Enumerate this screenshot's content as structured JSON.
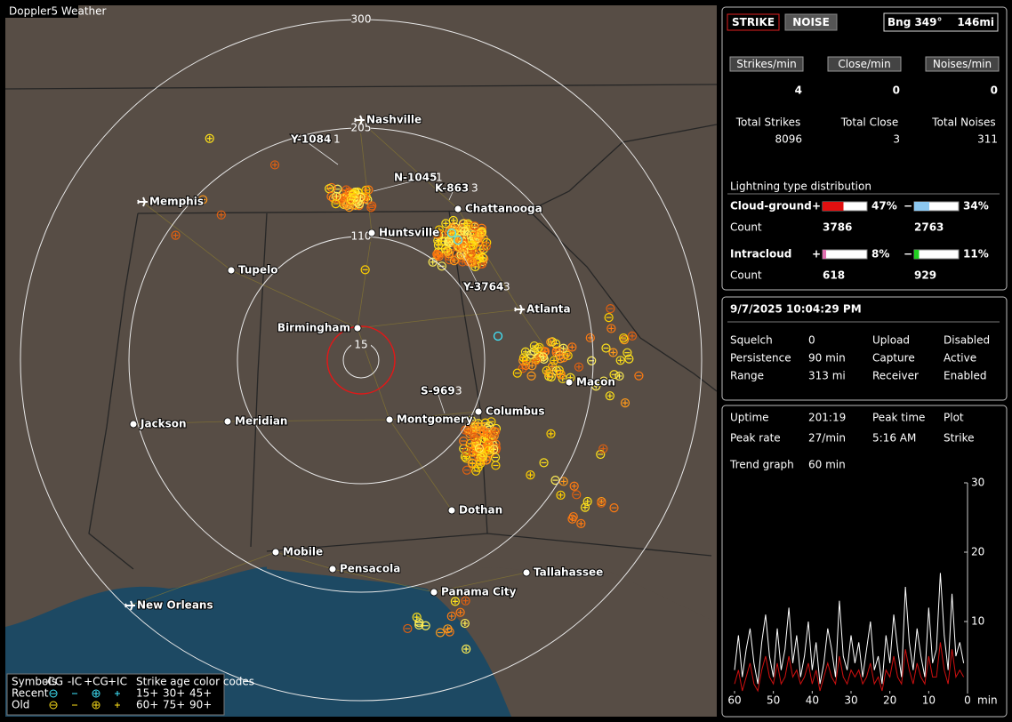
{
  "map": {
    "title": "Doppler5 Weather",
    "rings": [
      "300",
      "205",
      "110",
      "15"
    ],
    "cities": [
      "Nashville",
      "Memphis",
      "Chattanooga",
      "Huntsville",
      "Tupelo",
      "Atlanta",
      "Birmingham",
      "Macon",
      "Jackson",
      "Meridian",
      "Montgomery",
      "Columbus",
      "Dothan",
      "Mobile",
      "Pensacola",
      "Tallahassee",
      "Panama City",
      "New Orleans"
    ],
    "strike_tags": [
      {
        "id": "Y-1084",
        "count": "1"
      },
      {
        "id": "N-1045",
        "count": "1"
      },
      {
        "id": "K-863",
        "count": "3"
      },
      {
        "id": "Y-3764",
        "count": "3"
      },
      {
        "id": "S-969",
        "count": "3"
      }
    ],
    "legend": {
      "symbols": "Symbols",
      "types": [
        "-CG",
        "-IC",
        "+CG",
        "+IC"
      ],
      "age_title": "Strike age color codes",
      "rows": [
        {
          "label": "Recent",
          "ages": [
            "15+",
            "30+",
            "45+"
          ]
        },
        {
          "label": "Old",
          "ages": [
            "60+",
            "75+",
            "90+"
          ]
        }
      ]
    }
  },
  "counters": {
    "buttons": [
      "STRIKE",
      "NOISE"
    ],
    "bearing": "Bng 349°",
    "distance": "146mi",
    "rates": [
      {
        "label": "Strikes/min",
        "value": 4
      },
      {
        "label": "Close/min",
        "value": 0
      },
      {
        "label": "Noises/min",
        "value": 0
      }
    ],
    "totals": [
      {
        "label": "Total Strikes",
        "value": 8096
      },
      {
        "label": "Total Close",
        "value": 3
      },
      {
        "label": "Total Noises",
        "value": 311
      }
    ]
  },
  "distribution": {
    "title": "Lightning type distribution",
    "count_label": "Count",
    "rows": [
      {
        "name": "Cloud-ground",
        "positive": {
          "sign": "+",
          "percent": {
            "value": 47,
            "label": "47%"
          },
          "count": 3786,
          "color": "#e01010"
        },
        "negative": {
          "sign": "−",
          "percent": {
            "value": 34,
            "label": "34%"
          },
          "count": 2763,
          "color": "#8cc8f0"
        }
      },
      {
        "name": "Intracloud",
        "positive": {
          "sign": "+",
          "percent": {
            "value": 8,
            "label": "8%"
          },
          "count": 618,
          "color": "#e070b0"
        },
        "negative": {
          "sign": "−",
          "percent": {
            "value": 11,
            "label": "11%"
          },
          "count": 929,
          "color": "#20d020"
        }
      }
    ]
  },
  "status": {
    "datetime": "9/7/2025 10:04:29 PM",
    "items": [
      [
        "Squelch",
        "0",
        "Upload",
        "Disabled"
      ],
      [
        "Persistence",
        "90 min",
        "Capture",
        "Active"
      ],
      [
        "Range",
        "313 mi",
        "Receiver",
        "Enabled"
      ]
    ]
  },
  "stats": {
    "items": [
      [
        "Uptime",
        "201:19",
        "Peak time",
        "Plot"
      ],
      [
        "Peak rate",
        "27/min",
        "5:16 AM",
        "Strike"
      ]
    ],
    "trend_label": "Trend graph",
    "trend_window": "60 min"
  },
  "trend_chart": {
    "type": "line",
    "xlim": [
      60,
      0
    ],
    "ylim": [
      0,
      30
    ],
    "yticks": [
      10,
      20,
      30
    ],
    "xticks": [
      60,
      50,
      40,
      30,
      20,
      10,
      0
    ],
    "x_unit": "min",
    "x": [
      60,
      59,
      58,
      57,
      56,
      55,
      54,
      53,
      52,
      51,
      50,
      49,
      48,
      47,
      46,
      45,
      44,
      43,
      42,
      41,
      40,
      39,
      38,
      37,
      36,
      35,
      34,
      33,
      32,
      31,
      30,
      29,
      28,
      27,
      26,
      25,
      24,
      23,
      22,
      21,
      20,
      19,
      18,
      17,
      16,
      15,
      14,
      13,
      12,
      11,
      10,
      9,
      8,
      7,
      6,
      5,
      4,
      3,
      2,
      1
    ],
    "series": [
      {
        "color": "#ffffff",
        "values": [
          3,
          8,
          2,
          6,
          9,
          4,
          1,
          7,
          11,
          5,
          2,
          9,
          3,
          6,
          12,
          4,
          8,
          2,
          5,
          10,
          3,
          7,
          1,
          4,
          9,
          6,
          2,
          13,
          5,
          3,
          8,
          4,
          7,
          2,
          6,
          10,
          3,
          5,
          1,
          8,
          4,
          11,
          6,
          2,
          15,
          7,
          3,
          9,
          5,
          2,
          12,
          4,
          6,
          17,
          8,
          3,
          14,
          5,
          7,
          4
        ]
      },
      {
        "color": "#d01010",
        "values": [
          1,
          3,
          0,
          2,
          4,
          1,
          0,
          3,
          5,
          2,
          1,
          4,
          1,
          2,
          5,
          2,
          3,
          1,
          2,
          4,
          1,
          3,
          0,
          2,
          4,
          2,
          1,
          5,
          2,
          1,
          3,
          2,
          3,
          1,
          2,
          4,
          1,
          2,
          0,
          3,
          2,
          5,
          2,
          1,
          6,
          3,
          1,
          4,
          2,
          1,
          5,
          2,
          2,
          7,
          3,
          1,
          6,
          2,
          3,
          2
        ]
      }
    ]
  }
}
